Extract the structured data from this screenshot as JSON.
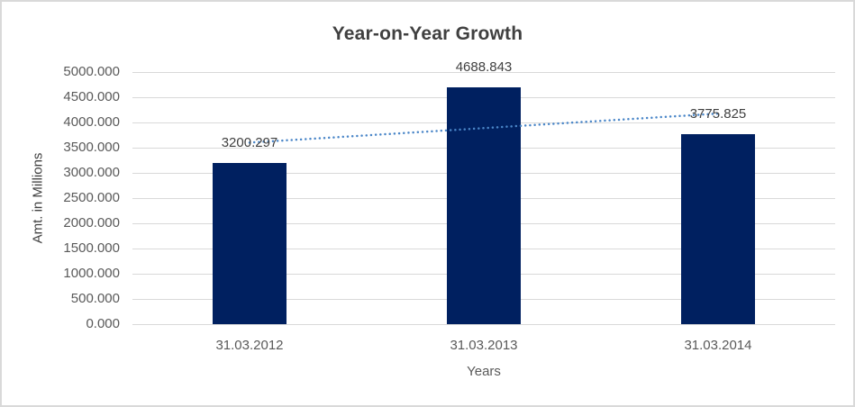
{
  "window": {
    "background_color": "#ffffff",
    "border_color": "#d9d9d9"
  },
  "chart_data": {
    "type": "bar",
    "title": "Year-on-Year Growth",
    "xlabel": "Years",
    "ylabel": "Amt. in Millions",
    "categories": [
      "31.03.2012",
      "31.03.2013",
      "31.03.2014"
    ],
    "values": [
      3200.297,
      4688.843,
      3775.825
    ],
    "value_labels": [
      "3200.297",
      "4688.843",
      "3775.825"
    ],
    "ylim": [
      0,
      5000
    ],
    "yticks": [
      {
        "value": 0,
        "label": "0.000"
      },
      {
        "value": 500,
        "label": "500.000"
      },
      {
        "value": 1000,
        "label": "1000.000"
      },
      {
        "value": 1500,
        "label": "1500.000"
      },
      {
        "value": 2000,
        "label": "2000.000"
      },
      {
        "value": 2500,
        "label": "2500.000"
      },
      {
        "value": 3000,
        "label": "3000.000"
      },
      {
        "value": 3500,
        "label": "3500.000"
      },
      {
        "value": 4000,
        "label": "4000.000"
      },
      {
        "value": 4500,
        "label": "4500.000"
      },
      {
        "value": 5000,
        "label": "5000.000"
      }
    ],
    "grid": "horizontal",
    "legend": "none",
    "bar_color": "#002060",
    "gridline_color": "#d9d9d9",
    "tick_label_color": "#595959",
    "title_color": "#404040",
    "data_label_color": "#404040",
    "trendline": {
      "type": "linear",
      "style": "dotted",
      "color": "#4a86c8",
      "start_value": 3600.6,
      "end_value": 4176.1
    }
  }
}
